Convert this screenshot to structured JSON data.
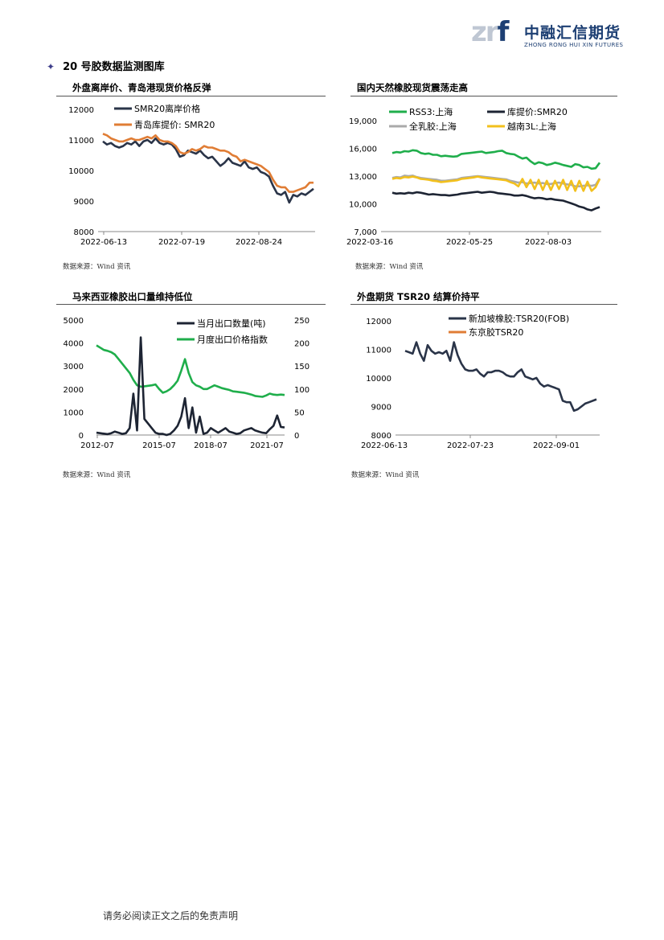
{
  "header": {
    "logo_mark": "zrf",
    "logo_cn": "中融汇信期货",
    "logo_en": "ZHONG RONG HUI XIN FUTURES",
    "brand_color": "#1d3f73"
  },
  "section_title": "20 号胶数据监测图库",
  "footer_text": "请务必阅读正文之后的免责声明",
  "charts": [
    {
      "title": "外盘离岸价、青岛港现货价格反弹",
      "source": "数据来源：Wind 资讯"
    },
    {
      "title": "国内天然橡胶现货震荡走高",
      "source": "数据来源：Wind 资讯"
    },
    {
      "title": "马来西亚橡胶出口量维持低位",
      "source": "数据来源：Wind 资讯"
    },
    {
      "title": "外盘期货 TSR20 结算价持平",
      "source": "数据来源：Wind 资讯"
    }
  ],
  "chart_data": [
    {
      "type": "line",
      "title": "外盘离岸价、青岛港现货价格反弹",
      "x_ticks": [
        "2022-06-13",
        "2022-07-19",
        "2022-08-24"
      ],
      "y_ticks": [
        "12000",
        "11000",
        "10000",
        "9000",
        "8000"
      ],
      "ylim": [
        8000,
        12000
      ],
      "legend": "top-left",
      "series": [
        {
          "name": "SMR20离岸价格",
          "color": "#2a3448",
          "values": [
            10950,
            10850,
            10900,
            10800,
            10750,
            10800,
            10900,
            10850,
            10950,
            10800,
            10950,
            11000,
            10900,
            11050,
            10900,
            10850,
            10900,
            10850,
            10700,
            10450,
            10500,
            10650,
            10600,
            10550,
            10650,
            10500,
            10400,
            10450,
            10300,
            10150,
            10250,
            10400,
            10250,
            10200,
            10150,
            10300,
            10100,
            10050,
            10100,
            9950,
            9900,
            9800,
            9500,
            9250,
            9200,
            9300,
            8950,
            9200,
            9150,
            9250,
            9200,
            9300,
            9400
          ]
        },
        {
          "name": "青岛库提价: SMR20",
          "color": "#e07d35",
          "values": [
            11200,
            11150,
            11050,
            11000,
            10950,
            10950,
            11000,
            11050,
            11000,
            11000,
            11050,
            11100,
            11050,
            11150,
            11000,
            10950,
            10950,
            10900,
            10800,
            10600,
            10550,
            10600,
            10700,
            10650,
            10700,
            10800,
            10750,
            10750,
            10700,
            10650,
            10650,
            10600,
            10500,
            10450,
            10300,
            10350,
            10300,
            10250,
            10200,
            10150,
            10050,
            9950,
            9700,
            9500,
            9450,
            9450,
            9300,
            9300,
            9350,
            9400,
            9450,
            9600,
            9600
          ]
        }
      ]
    },
    {
      "type": "line",
      "title": "国内天然橡胶现货震荡走高",
      "x_ticks": [
        "2022-03-16",
        "2022-05-25",
        "2022-08-03"
      ],
      "y_ticks": [
        "19,000",
        "16,000",
        "13,000",
        "10,000",
        "7,000"
      ],
      "ylim": [
        7000,
        19000
      ],
      "legend": "top",
      "series": [
        {
          "name": "RSS3:上海",
          "color": "#1fae4b",
          "values": [
            15500,
            15600,
            15550,
            15700,
            15650,
            15800,
            15750,
            15500,
            15400,
            15450,
            15300,
            15300,
            15150,
            15200,
            15150,
            15100,
            15150,
            15400,
            15450,
            15500,
            15550,
            15600,
            15650,
            15500,
            15550,
            15600,
            15700,
            15750,
            15500,
            15400,
            15350,
            15100,
            14900,
            15000,
            14600,
            14300,
            14500,
            14400,
            14200,
            14300,
            14450,
            14350,
            14200,
            14100,
            14000,
            14300,
            14200,
            13950,
            14000,
            13800,
            13850,
            14450
          ]
        },
        {
          "name": "库提价:SMR20",
          "color": "#1d2433",
          "values": [
            11200,
            11100,
            11150,
            11100,
            11200,
            11150,
            11250,
            11200,
            11100,
            11000,
            11050,
            11000,
            10950,
            10950,
            10900,
            10950,
            11000,
            11100,
            11150,
            11200,
            11250,
            11300,
            11200,
            11250,
            11300,
            11250,
            11150,
            11100,
            11050,
            11000,
            10900,
            10900,
            10950,
            10850,
            10700,
            10600,
            10650,
            10600,
            10500,
            10550,
            10450,
            10400,
            10350,
            10200,
            10050,
            9900,
            9700,
            9600,
            9400,
            9300,
            9500,
            9650
          ]
        },
        {
          "name": "全乳胶:上海",
          "color": "#aaaaaa",
          "values": [
            12800,
            12900,
            12850,
            13050,
            13000,
            13050,
            12900,
            12800,
            12750,
            12700,
            12650,
            12600,
            12500,
            12500,
            12550,
            12600,
            12650,
            12800,
            12850,
            12900,
            12950,
            13000,
            12950,
            12900,
            12850,
            12800,
            12750,
            12700,
            12650,
            12500,
            12400,
            12300,
            12350,
            12200,
            12250,
            12300,
            12200,
            12250,
            12150,
            12150,
            12250,
            12300,
            12200,
            12100,
            12050,
            11900,
            11900,
            11950,
            12000,
            11950,
            12050,
            12750
          ]
        },
        {
          "name": "越南3L:上海",
          "color": "#f2c01d",
          "values": [
            12700,
            12800,
            12750,
            12900,
            12850,
            12950,
            12850,
            12700,
            12650,
            12600,
            12500,
            12450,
            12350,
            12400,
            12450,
            12500,
            12550,
            12700,
            12750,
            12800,
            12850,
            12950,
            12850,
            12800,
            12750,
            12700,
            12650,
            12600,
            12550,
            12350,
            12200,
            11900,
            12700,
            11800,
            12600,
            11600,
            12600,
            11500,
            12500,
            11500,
            12500,
            11600,
            12600,
            11500,
            12500,
            11400,
            12500,
            11400,
            12400,
            11400,
            11800,
            12700
          ]
        }
      ]
    },
    {
      "type": "line",
      "title": "马来西亚橡胶出口量维持低位",
      "x_ticks": [
        "2012-07",
        "2015-07",
        "2018-07",
        "2021-07"
      ],
      "y_ticks_left": [
        "5000",
        "4000",
        "3000",
        "2000",
        "1000",
        "0"
      ],
      "y_ticks_right": [
        "250",
        "200",
        "150",
        "100",
        "50",
        "0"
      ],
      "ylim_left": [
        0,
        5000
      ],
      "ylim_right": [
        0,
        250
      ],
      "legend": "top-right",
      "series": [
        {
          "name": "当月出口数量(吨)",
          "color": "#1d2433",
          "axis": "left",
          "values": [
            100,
            80,
            60,
            40,
            80,
            150,
            100,
            50,
            80,
            300,
            1800,
            200,
            4250,
            700,
            500,
            300,
            100,
            50,
            50,
            0,
            50,
            200,
            400,
            800,
            1600,
            300,
            1200,
            100,
            800,
            50,
            100,
            300,
            200,
            100,
            200,
            300,
            150,
            100,
            50,
            80,
            200,
            250,
            300,
            200,
            150,
            100,
            80,
            250,
            400,
            850,
            350,
            330
          ]
        },
        {
          "name": "月度出口价格指数",
          "color": "#1fae4b",
          "axis": "right",
          "values": [
            195,
            190,
            185,
            183,
            180,
            175,
            165,
            155,
            145,
            135,
            120,
            108,
            105,
            106,
            107,
            108,
            110,
            100,
            92,
            95,
            100,
            108,
            118,
            140,
            165,
            135,
            115,
            108,
            105,
            100,
            100,
            104,
            108,
            105,
            102,
            100,
            98,
            95,
            94,
            93,
            92,
            90,
            88,
            85,
            84,
            83,
            86,
            90,
            88,
            87,
            88,
            87
          ]
        }
      ]
    },
    {
      "type": "line",
      "title": "外盘期货 TSR20 结算价持平",
      "x_ticks": [
        "2022-06-13",
        "2022-07-23",
        "2022-09-01"
      ],
      "y_ticks": [
        "12000",
        "11000",
        "10000",
        "9000",
        "8000"
      ],
      "ylim": [
        8000,
        12000
      ],
      "legend": "top-right",
      "series": [
        {
          "name": "新加坡橡胶:TSR20(FOB)",
          "color": "#2a3448",
          "values": [
            10950,
            10900,
            10850,
            11250,
            10850,
            10600,
            11150,
            10950,
            10850,
            10900,
            10850,
            10950,
            10600,
            11250,
            10800,
            10500,
            10300,
            10250,
            10250,
            10300,
            10150,
            10050,
            10200,
            10200,
            10250,
            10250,
            10200,
            10100,
            10050,
            10050,
            10200,
            10300,
            10050,
            10000,
            9950,
            10000,
            9800,
            9700,
            9750,
            9700,
            9650,
            9600,
            9200,
            9150,
            9150,
            8850,
            8900,
            9000,
            9100,
            9150,
            9200,
            9250
          ]
        },
        {
          "name": "东京胶TSR20",
          "color": "#e07d35",
          "values": []
        }
      ]
    }
  ]
}
